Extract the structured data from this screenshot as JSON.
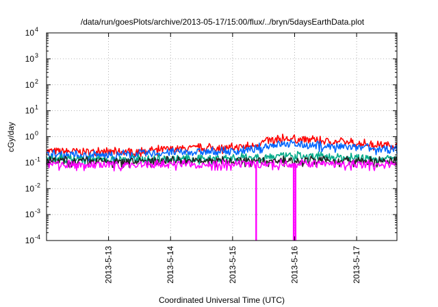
{
  "chart_data": {
    "type": "line",
    "title": "/data/run/goesPlots/archive/2013-05-17/15:00/flux/../bryn/5daysEarthData.plot",
    "xlabel": "Coordinated Universal Time (UTC)",
    "ylabel": "cGy/day",
    "x_ticks": [
      {
        "value": 1.0,
        "label": "2013-5-13"
      },
      {
        "value": 2.0,
        "label": "2013-5-14"
      },
      {
        "value": 3.0,
        "label": "2013-5-15"
      },
      {
        "value": 4.0,
        "label": "2013-5-16"
      },
      {
        "value": 5.0,
        "label": "2013-5-17"
      }
    ],
    "xlim": [
      0.0,
      5.65
    ],
    "y_scale": "log",
    "ylim": [
      0.0001,
      10000
    ],
    "y_ticks": [
      {
        "base": "10",
        "exp": "4",
        "value": 10000
      },
      {
        "base": "10",
        "exp": "3",
        "value": 1000
      },
      {
        "base": "10",
        "exp": "2",
        "value": 100
      },
      {
        "base": "10",
        "exp": "1",
        "value": 10
      },
      {
        "base": "10",
        "exp": "0",
        "value": 1
      },
      {
        "base": "10",
        "exp": "-1",
        "value": 0.1
      },
      {
        "base": "10",
        "exp": "-2",
        "value": 0.01
      },
      {
        "base": "10",
        "exp": "-3",
        "value": 0.001
      },
      {
        "base": "10",
        "exp": "-4",
        "value": 0.0001
      }
    ],
    "grid": true,
    "series": [
      {
        "color": "#ff0000",
        "x": [
          0.0,
          1.0,
          1.9,
          2.5,
          3.0,
          3.3,
          3.55,
          3.75,
          4.0,
          4.3,
          4.8,
          5.2,
          5.65
        ],
        "values": [
          0.28,
          0.25,
          0.32,
          0.36,
          0.38,
          0.42,
          0.68,
          0.85,
          0.78,
          0.72,
          0.6,
          0.52,
          0.45
        ]
      },
      {
        "color": "#0066ff",
        "x": [
          0.0,
          1.0,
          1.9,
          2.5,
          3.0,
          3.3,
          3.55,
          3.75,
          4.0,
          4.3,
          4.8,
          5.2,
          5.65
        ],
        "values": [
          0.2,
          0.19,
          0.24,
          0.26,
          0.27,
          0.3,
          0.45,
          0.52,
          0.5,
          0.46,
          0.4,
          0.35,
          0.3
        ]
      },
      {
        "color": "#00aa88",
        "x": [
          0.0,
          1.0,
          2.0,
          3.0,
          3.5,
          4.0,
          4.5,
          5.0,
          5.65
        ],
        "values": [
          0.14,
          0.13,
          0.14,
          0.15,
          0.17,
          0.18,
          0.17,
          0.15,
          0.14
        ]
      },
      {
        "color": "#222222",
        "x": [
          0.0,
          1.0,
          2.0,
          3.0,
          4.0,
          5.0,
          5.65
        ],
        "values": [
          0.115,
          0.11,
          0.115,
          0.115,
          0.12,
          0.115,
          0.11
        ]
      },
      {
        "color": "#ff00ff",
        "x": [
          0.0,
          1.0,
          2.0,
          3.0,
          4.0,
          5.0,
          5.65
        ],
        "values": [
          0.085,
          0.08,
          0.085,
          0.085,
          0.09,
          0.085,
          0.08
        ]
      }
    ],
    "dropouts": [
      {
        "color": "#ff00ff",
        "x": 3.38,
        "value": 0.0001
      },
      {
        "color": "#ff00ff",
        "x": 3.985,
        "value": 0.0001
      },
      {
        "color": "#ff00ff",
        "x": 4.015,
        "value": 0.0001
      }
    ]
  }
}
